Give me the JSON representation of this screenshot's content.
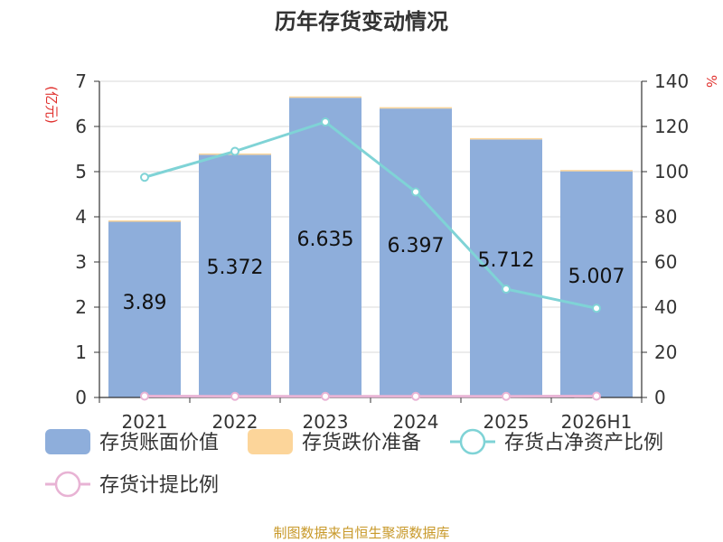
{
  "chart_data": {
    "type": "bar",
    "title": "历年存货变动情况",
    "categories": [
      "2021",
      "2022",
      "2023",
      "2024",
      "2025",
      "2026H1"
    ],
    "series": [
      {
        "name": "存货账面价值",
        "type": "bar",
        "axis": "left",
        "color": "#8eaedb",
        "values": [
          3.89,
          5.372,
          6.635,
          6.397,
          5.712,
          5.007
        ],
        "labels": [
          "3.89",
          "5.372",
          "6.635",
          "6.397",
          "5.712",
          "5.007"
        ]
      },
      {
        "name": "存货跌价准备",
        "type": "bar-stack",
        "axis": "left",
        "color": "#fcd59a",
        "values": [
          0.03,
          0.03,
          0.03,
          0.03,
          0.03,
          0.03
        ]
      },
      {
        "name": "存货占净资产比例",
        "type": "line",
        "axis": "right",
        "color": "#7fd3d6",
        "values": [
          97.5,
          109,
          122,
          91,
          48,
          39.5
        ]
      },
      {
        "name": "存货计提比例",
        "type": "line",
        "axis": "right",
        "color": "#e8b3d4",
        "values": [
          0.6,
          0.5,
          0.5,
          0.5,
          0.5,
          0.6
        ]
      }
    ],
    "left_axis": {
      "label": "(亿元)",
      "range": [
        0,
        7
      ],
      "ticks": [
        0,
        1,
        2,
        3,
        4,
        5,
        6,
        7
      ]
    },
    "right_axis": {
      "label": "%",
      "range": [
        0,
        140
      ],
      "ticks": [
        0,
        20,
        40,
        60,
        80,
        100,
        120,
        140
      ]
    },
    "grid": true,
    "legend_position": "bottom"
  },
  "source": "制图数据来自恒生聚源数据库"
}
